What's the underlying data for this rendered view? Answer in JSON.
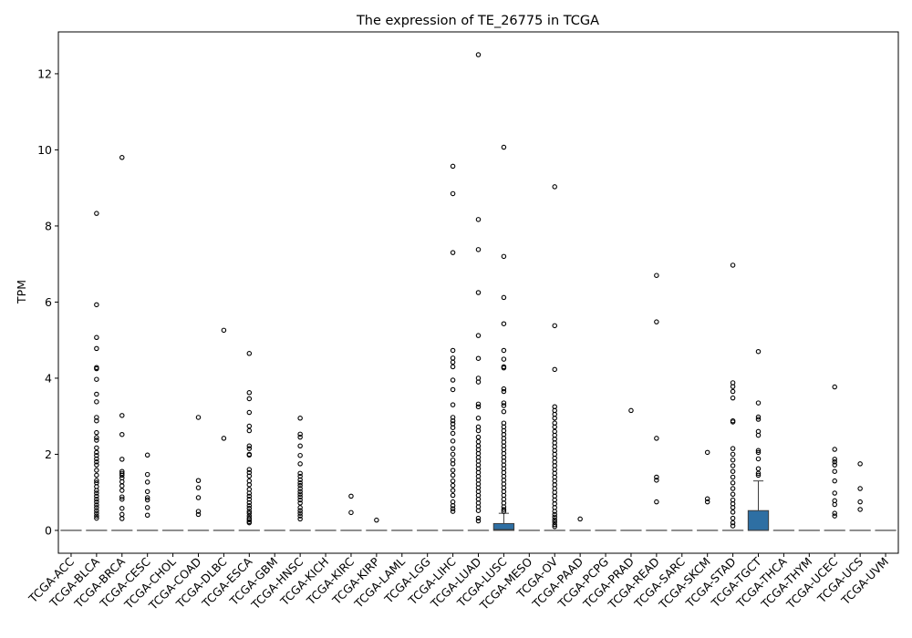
{
  "chart_data": {
    "type": "box",
    "title": "The expression of TE_26775 in TCGA",
    "xlabel": "",
    "ylabel": "TPM",
    "ylim": [
      -0.6,
      13.1
    ],
    "yticks": [
      0,
      2,
      4,
      6,
      8,
      10,
      12
    ],
    "grid": false,
    "legend": "none",
    "box_color": "#2e6fa3",
    "categories": [
      "TCGA-ACC",
      "TCGA-BLCA",
      "TCGA-BRCA",
      "TCGA-CESC",
      "TCGA-CHOL",
      "TCGA-COAD",
      "TCGA-DLBC",
      "TCGA-ESCA",
      "TCGA-GBM",
      "TCGA-HNSC",
      "TCGA-KICH",
      "TCGA-KIRC",
      "TCGA-KIRP",
      "TCGA-LAML",
      "TCGA-LGG",
      "TCGA-LIHC",
      "TCGA-LUAD",
      "TCGA-LUSC",
      "TCGA-MESO",
      "TCGA-OV",
      "TCGA-PAAD",
      "TCGA-PCPG",
      "TCGA-PRAD",
      "TCGA-READ",
      "TCGA-SARC",
      "TCGA-SKCM",
      "TCGA-STAD",
      "TCGA-TGCT",
      "TCGA-THCA",
      "TCGA-THYM",
      "TCGA-UCEC",
      "TCGA-UCS",
      "TCGA-UVM"
    ],
    "boxes": [
      {
        "category": "TCGA-ACC",
        "q1": 0,
        "median": 0,
        "q3": 0,
        "whisker_low": 0,
        "whisker_high": 0,
        "outliers": []
      },
      {
        "category": "TCGA-BLCA",
        "q1": 0,
        "median": 0,
        "q3": 0,
        "whisker_low": 0,
        "whisker_high": 0,
        "outliers": [
          8.33,
          5.93,
          5.07,
          4.78,
          4.28,
          4.25,
          3.97,
          3.58,
          3.38,
          2.97,
          2.88,
          2.57,
          2.44,
          2.37,
          2.17,
          2.05,
          1.97,
          1.88,
          1.8,
          1.72,
          1.58,
          1.45,
          1.31,
          1.25,
          1.15,
          1.05,
          0.98,
          0.9,
          0.82,
          0.75,
          0.67,
          0.6,
          0.52,
          0.45,
          0.38,
          0.32
        ]
      },
      {
        "category": "TCGA-BRCA",
        "q1": 0,
        "median": 0,
        "q3": 0,
        "whisker_low": 0,
        "whisker_high": 0,
        "outliers": [
          9.8,
          3.02,
          2.52,
          1.87,
          1.55,
          1.5,
          1.45,
          1.38,
          1.28,
          1.17,
          1.05,
          0.88,
          0.82,
          0.58,
          0.42,
          0.31
        ]
      },
      {
        "category": "TCGA-CESC",
        "q1": 0,
        "median": 0,
        "q3": 0,
        "whisker_low": 0,
        "whisker_high": 0,
        "outliers": [
          1.98,
          1.47,
          1.27,
          1.02,
          0.86,
          0.8,
          0.6,
          0.4
        ]
      },
      {
        "category": "TCGA-CHOL",
        "q1": 0,
        "median": 0,
        "q3": 0,
        "whisker_low": 0,
        "whisker_high": 0,
        "outliers": []
      },
      {
        "category": "TCGA-COAD",
        "q1": 0,
        "median": 0,
        "q3": 0,
        "whisker_low": 0,
        "whisker_high": 0,
        "outliers": [
          2.97,
          1.31,
          1.12,
          0.86,
          0.5,
          0.42
        ]
      },
      {
        "category": "TCGA-DLBC",
        "q1": 0,
        "median": 0,
        "q3": 0,
        "whisker_low": 0,
        "whisker_high": 0,
        "outliers": [
          5.26,
          2.42
        ]
      },
      {
        "category": "TCGA-ESCA",
        "q1": 0,
        "median": 0,
        "q3": 0,
        "whisker_low": 0,
        "whisker_high": 0,
        "outliers": [
          4.65,
          3.62,
          3.46,
          3.1,
          2.74,
          2.62,
          2.22,
          2.15,
          2.0,
          1.98,
          1.6,
          1.52,
          1.43,
          1.3,
          1.2,
          1.08,
          0.98,
          0.9,
          0.82,
          0.73,
          0.65,
          0.58,
          0.5,
          0.45,
          0.38,
          0.32,
          0.28,
          0.23,
          0.2
        ]
      },
      {
        "category": "TCGA-GBM",
        "q1": 0,
        "median": 0,
        "q3": 0,
        "whisker_low": 0,
        "whisker_high": 0,
        "outliers": []
      },
      {
        "category": "TCGA-HNSC",
        "q1": 0,
        "median": 0,
        "q3": 0,
        "whisker_low": 0,
        "whisker_high": 0,
        "outliers": [
          2.95,
          2.53,
          2.45,
          2.22,
          1.97,
          1.75,
          1.5,
          1.42,
          1.33,
          1.25,
          1.18,
          1.1,
          1.02,
          0.95,
          0.88,
          0.8,
          0.72,
          0.6,
          0.52,
          0.45,
          0.38,
          0.3
        ]
      },
      {
        "category": "TCGA-KICH",
        "q1": 0,
        "median": 0,
        "q3": 0,
        "whisker_low": 0,
        "whisker_high": 0,
        "outliers": []
      },
      {
        "category": "TCGA-KIRC",
        "q1": 0,
        "median": 0,
        "q3": 0,
        "whisker_low": 0,
        "whisker_high": 0,
        "outliers": [
          0.9,
          0.47
        ]
      },
      {
        "category": "TCGA-KIRP",
        "q1": 0,
        "median": 0,
        "q3": 0,
        "whisker_low": 0,
        "whisker_high": 0,
        "outliers": [
          0.27
        ]
      },
      {
        "category": "TCGA-LAML",
        "q1": 0,
        "median": 0,
        "q3": 0,
        "whisker_low": 0,
        "whisker_high": 0,
        "outliers": []
      },
      {
        "category": "TCGA-LGG",
        "q1": 0,
        "median": 0,
        "q3": 0,
        "whisker_low": 0,
        "whisker_high": 0,
        "outliers": []
      },
      {
        "category": "TCGA-LIHC",
        "q1": 0,
        "median": 0,
        "q3": 0,
        "whisker_low": 0,
        "whisker_high": 0,
        "outliers": [
          9.57,
          8.85,
          7.3,
          4.73,
          4.53,
          4.42,
          4.3,
          3.95,
          3.7,
          3.3,
          2.97,
          2.88,
          2.8,
          2.7,
          2.55,
          2.35,
          2.15,
          2.0,
          1.85,
          1.75,
          1.58,
          1.45,
          1.3,
          1.18,
          1.05,
          0.92,
          0.75,
          0.65,
          0.57,
          0.5
        ]
      },
      {
        "category": "TCGA-LUAD",
        "q1": 0,
        "median": 0,
        "q3": 0,
        "whisker_low": 0,
        "whisker_high": 0,
        "outliers": [
          12.5,
          8.17,
          7.38,
          6.25,
          5.12,
          4.52,
          4.0,
          3.9,
          3.32,
          3.25,
          2.95,
          2.72,
          2.62,
          2.45,
          2.33,
          2.22,
          2.12,
          2.02,
          1.92,
          1.82,
          1.72,
          1.62,
          1.52,
          1.42,
          1.32,
          1.22,
          1.12,
          1.02,
          0.92,
          0.82,
          0.72,
          0.62,
          0.52,
          0.32,
          0.25
        ]
      },
      {
        "category": "TCGA-LUSC",
        "q1": 0,
        "median": 0.02,
        "q3": 0.18,
        "whisker_low": 0,
        "whisker_high": 0.45,
        "outliers": [
          10.07,
          7.2,
          6.12,
          5.43,
          4.73,
          4.5,
          4.3,
          4.27,
          3.72,
          3.65,
          3.35,
          3.28,
          3.12,
          2.82,
          2.72,
          2.62,
          2.52,
          2.42,
          2.32,
          2.22,
          2.12,
          2.02,
          1.92,
          1.82,
          1.72,
          1.62,
          1.52,
          1.42,
          1.32,
          1.22,
          1.12,
          1.02,
          0.92,
          0.82,
          0.72,
          0.62,
          0.55,
          0.5
        ]
      },
      {
        "category": "TCGA-MESO",
        "q1": 0,
        "median": 0,
        "q3": 0,
        "whisker_low": 0,
        "whisker_high": 0,
        "outliers": []
      },
      {
        "category": "TCGA-OV",
        "q1": 0,
        "median": 0,
        "q3": 0,
        "whisker_low": 0,
        "whisker_high": 0,
        "outliers": [
          9.03,
          5.38,
          4.23,
          3.25,
          3.15,
          3.05,
          2.95,
          2.82,
          2.72,
          2.6,
          2.5,
          2.4,
          2.3,
          2.2,
          2.1,
          2.0,
          1.9,
          1.8,
          1.7,
          1.6,
          1.5,
          1.4,
          1.3,
          1.2,
          1.1,
          1.0,
          0.9,
          0.8,
          0.7,
          0.6,
          0.5,
          0.42,
          0.35,
          0.28,
          0.22,
          0.15,
          0.1
        ]
      },
      {
        "category": "TCGA-PAAD",
        "q1": 0,
        "median": 0,
        "q3": 0,
        "whisker_low": 0,
        "whisker_high": 0,
        "outliers": [
          0.3
        ]
      },
      {
        "category": "TCGA-PCPG",
        "q1": 0,
        "median": 0,
        "q3": 0,
        "whisker_low": 0,
        "whisker_high": 0,
        "outliers": []
      },
      {
        "category": "TCGA-PRAD",
        "q1": 0,
        "median": 0,
        "q3": 0,
        "whisker_low": 0,
        "whisker_high": 0,
        "outliers": [
          3.15
        ]
      },
      {
        "category": "TCGA-READ",
        "q1": 0,
        "median": 0,
        "q3": 0,
        "whisker_low": 0,
        "whisker_high": 0,
        "outliers": [
          6.7,
          5.48,
          2.42,
          1.4,
          1.32,
          0.75
        ]
      },
      {
        "category": "TCGA-SARC",
        "q1": 0,
        "median": 0,
        "q3": 0,
        "whisker_low": 0,
        "whisker_high": 0,
        "outliers": []
      },
      {
        "category": "TCGA-SKCM",
        "q1": 0,
        "median": 0,
        "q3": 0,
        "whisker_low": 0,
        "whisker_high": 0,
        "outliers": [
          2.05,
          0.83,
          0.75
        ]
      },
      {
        "category": "TCGA-STAD",
        "q1": 0,
        "median": 0,
        "q3": 0,
        "whisker_low": 0,
        "whisker_high": 0,
        "outliers": [
          6.97,
          3.88,
          3.78,
          3.65,
          3.48,
          2.88,
          2.85,
          2.15,
          2.0,
          1.85,
          1.7,
          1.55,
          1.4,
          1.25,
          1.1,
          0.95,
          0.8,
          0.7,
          0.6,
          0.48,
          0.32,
          0.2,
          0.12
        ]
      },
      {
        "category": "TCGA-TGCT",
        "q1": 0,
        "median": 0,
        "q3": 0.52,
        "whisker_low": 0,
        "whisker_high": 1.3,
        "outliers": [
          4.7,
          3.35,
          2.98,
          2.92,
          2.6,
          2.5,
          2.1,
          2.05,
          1.88,
          1.62,
          1.5,
          1.45
        ]
      },
      {
        "category": "TCGA-THCA",
        "q1": 0,
        "median": 0,
        "q3": 0,
        "whisker_low": 0,
        "whisker_high": 0,
        "outliers": []
      },
      {
        "category": "TCGA-THYM",
        "q1": 0,
        "median": 0,
        "q3": 0,
        "whisker_low": 0,
        "whisker_high": 0,
        "outliers": []
      },
      {
        "category": "TCGA-UCEC",
        "q1": 0,
        "median": 0,
        "q3": 0,
        "whisker_low": 0,
        "whisker_high": 0,
        "outliers": [
          3.77,
          2.13,
          1.87,
          1.8,
          1.72,
          1.55,
          1.3,
          0.98,
          0.78,
          0.68,
          0.45,
          0.38
        ]
      },
      {
        "category": "TCGA-UCS",
        "q1": 0,
        "median": 0,
        "q3": 0,
        "whisker_low": 0,
        "whisker_high": 0,
        "outliers": [
          1.75,
          1.1,
          0.75,
          0.55
        ]
      },
      {
        "category": "TCGA-UVM",
        "q1": 0,
        "median": 0,
        "q3": 0,
        "whisker_low": 0,
        "whisker_high": 0,
        "outliers": []
      }
    ]
  }
}
